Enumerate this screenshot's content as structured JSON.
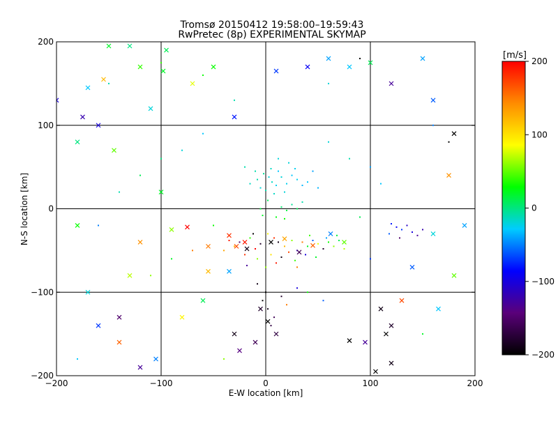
{
  "chart_data": {
    "type": "scatter",
    "title": "Tromsø 20150412 19:58:00–19:59:43",
    "subtitle": "RwPretec (8p) EXPERIMENTAL SKYMAP",
    "xlabel": "E-W location [km]",
    "ylabel": "N-S location [km]",
    "xlim": [
      -200,
      200
    ],
    "ylim": [
      -200,
      200
    ],
    "x_ticks": [
      -200,
      -100,
      0,
      100,
      200
    ],
    "y_ticks": [
      -200,
      -100,
      0,
      100,
      200
    ],
    "x_tick_labels": [
      "−200",
      "−100",
      "0",
      "100",
      "200"
    ],
    "y_tick_labels": [
      "−200",
      "−100",
      "0",
      "100",
      "200"
    ],
    "grid": true,
    "colorbar": {
      "label": "[m/s]",
      "min": -200,
      "max": 200,
      "ticks": [
        200,
        100,
        0,
        -100,
        -200
      ],
      "tick_labels": [
        "200",
        "100",
        "0",
        "−100",
        "−200"
      ],
      "colormap": [
        "#000000",
        "#5a007a",
        "#0000ff",
        "#00ccff",
        "#00ff00",
        "#ffff00",
        "#ff8c00",
        "#ff0000"
      ]
    },
    "series": [
      {
        "marker": "dot",
        "points": [
          [
            3,
            38,
            -20
          ],
          [
            6,
            32,
            -15
          ],
          [
            -2,
            42,
            -5
          ],
          [
            10,
            28,
            -25
          ],
          [
            12,
            45,
            -30
          ],
          [
            -8,
            35,
            -10
          ],
          [
            15,
            38,
            -20
          ],
          [
            20,
            30,
            -25
          ],
          [
            0,
            22,
            -10
          ],
          [
            5,
            48,
            -15
          ],
          [
            -5,
            25,
            -20
          ],
          [
            25,
            40,
            -30
          ],
          [
            8,
            18,
            -15
          ],
          [
            18,
            20,
            -20
          ],
          [
            -10,
            45,
            -10
          ],
          [
            30,
            35,
            -25
          ],
          [
            35,
            28,
            -35
          ],
          [
            40,
            32,
            -30
          ],
          [
            22,
            55,
            -20
          ],
          [
            -15,
            30,
            -15
          ],
          [
            45,
            45,
            -40
          ],
          [
            50,
            25,
            -35
          ],
          [
            -20,
            50,
            -10
          ],
          [
            12,
            60,
            -20
          ],
          [
            28,
            48,
            -25
          ],
          [
            2,
            10,
            10
          ],
          [
            -3,
            -8,
            20
          ],
          [
            15,
            2,
            5
          ],
          [
            20,
            -2,
            15
          ],
          [
            25,
            5,
            -5
          ],
          [
            10,
            -10,
            25
          ],
          [
            30,
            0,
            10
          ],
          [
            35,
            8,
            -10
          ],
          [
            18,
            -12,
            30
          ],
          [
            -5,
            0,
            15
          ],
          [
            8,
            -35,
            180
          ],
          [
            12,
            -40,
            -190
          ],
          [
            18,
            -45,
            120
          ],
          [
            25,
            -38,
            60
          ],
          [
            -5,
            -42,
            -180
          ],
          [
            -10,
            -48,
            200
          ],
          [
            -15,
            -35,
            40
          ],
          [
            30,
            -50,
            -120
          ],
          [
            35,
            -40,
            150
          ],
          [
            40,
            -45,
            20
          ],
          [
            45,
            -38,
            -60
          ],
          [
            50,
            -42,
            80
          ],
          [
            55,
            -48,
            -180
          ],
          [
            60,
            -40,
            30
          ],
          [
            65,
            -45,
            60
          ],
          [
            -20,
            -55,
            180
          ],
          [
            -25,
            -40,
            -150
          ],
          [
            -30,
            -45,
            120
          ],
          [
            5,
            -55,
            100
          ],
          [
            15,
            -58,
            -190
          ],
          [
            22,
            -52,
            170
          ],
          [
            -8,
            -60,
            60
          ],
          [
            28,
            -62,
            40
          ],
          [
            38,
            -55,
            -100
          ],
          [
            48,
            -58,
            20
          ],
          [
            70,
            -38,
            10
          ],
          [
            75,
            -48,
            70
          ],
          [
            -35,
            -38,
            190
          ],
          [
            -40,
            -50,
            130
          ],
          [
            2,
            -30,
            90
          ],
          [
            -12,
            -30,
            -200
          ],
          [
            42,
            -32,
            40
          ],
          [
            58,
            -35,
            -40
          ],
          [
            68,
            -32,
            15
          ],
          [
            10,
            -65,
            190
          ],
          [
            0,
            -70,
            60
          ],
          [
            -18,
            -68,
            -130
          ],
          [
            30,
            -70,
            150
          ],
          [
            120,
            -18,
            -80
          ],
          [
            125,
            -22,
            -90
          ],
          [
            130,
            -25,
            -70
          ],
          [
            135,
            -20,
            -110
          ],
          [
            140,
            -28,
            -100
          ],
          [
            118,
            -30,
            -60
          ],
          [
            145,
            -32,
            -130
          ],
          [
            150,
            -25,
            -120
          ],
          [
            128,
            -35,
            -150
          ],
          [
            0,
            -100,
            -200
          ],
          [
            2,
            -120,
            -190
          ],
          [
            5,
            -140,
            -170
          ],
          [
            -3,
            -110,
            -200
          ],
          [
            8,
            -130,
            -160
          ],
          [
            15,
            -105,
            -180
          ],
          [
            20,
            -115,
            150
          ],
          [
            -8,
            -90,
            -190
          ],
          [
            30,
            -95,
            -100
          ],
          [
            40,
            -100,
            30
          ],
          [
            55,
            -110,
            -60
          ],
          [
            -60,
            90,
            -30
          ],
          [
            -80,
            70,
            -20
          ],
          [
            -100,
            60,
            0
          ],
          [
            -120,
            40,
            10
          ],
          [
            -140,
            20,
            -10
          ],
          [
            -160,
            -20,
            -50
          ],
          [
            -50,
            -20,
            30
          ],
          [
            -70,
            -50,
            150
          ],
          [
            -90,
            -60,
            20
          ],
          [
            -110,
            -80,
            60
          ],
          [
            60,
            80,
            -20
          ],
          [
            80,
            60,
            -10
          ],
          [
            100,
            50,
            -40
          ],
          [
            110,
            30,
            -30
          ],
          [
            90,
            -10,
            10
          ],
          [
            100,
            -60,
            -70
          ],
          [
            -30,
            130,
            -10
          ],
          [
            -60,
            160,
            30
          ],
          [
            60,
            150,
            -20
          ],
          [
            90,
            180,
            -200
          ],
          [
            -150,
            150,
            -10
          ],
          [
            -100,
            175,
            40
          ],
          [
            160,
            100,
            -50
          ],
          [
            175,
            80,
            -200
          ],
          [
            -180,
            -180,
            -30
          ],
          [
            150,
            -150,
            20
          ],
          [
            -40,
            -180,
            60
          ]
        ]
      },
      {
        "marker": "cross",
        "points": [
          [
            -20,
            -40,
            190
          ],
          [
            -18,
            -48,
            -190
          ],
          [
            -28,
            -45,
            170
          ],
          [
            -35,
            -32,
            180
          ],
          [
            5,
            -40,
            -200
          ],
          [
            18,
            -36,
            130
          ],
          [
            32,
            -52,
            -160
          ],
          [
            45,
            -44,
            160
          ],
          [
            62,
            -30,
            -50
          ],
          [
            75,
            -40,
            50
          ],
          [
            -5,
            -120,
            -180
          ],
          [
            2,
            -135,
            -200
          ],
          [
            10,
            -150,
            -170
          ],
          [
            -10,
            -160,
            -160
          ],
          [
            -30,
            -150,
            -190
          ],
          [
            -25,
            -170,
            -140
          ],
          [
            80,
            -158,
            -200
          ],
          [
            -200,
            130,
            -100
          ],
          [
            -170,
            -100,
            -20
          ],
          [
            -140,
            -160,
            160
          ],
          [
            -120,
            -190,
            -130
          ],
          [
            -160,
            -140,
            -70
          ],
          [
            -180,
            -20,
            30
          ],
          [
            -60,
            -110,
            10
          ],
          [
            -80,
            -130,
            90
          ],
          [
            -105,
            -180,
            -50
          ],
          [
            -175,
            110,
            -120
          ],
          [
            -150,
            195,
            20
          ],
          [
            -120,
            170,
            40
          ],
          [
            -95,
            190,
            10
          ],
          [
            -130,
            195,
            0
          ],
          [
            -98,
            165,
            20
          ],
          [
            -170,
            145,
            -30
          ],
          [
            -155,
            155,
            120
          ],
          [
            -180,
            80,
            0
          ],
          [
            -145,
            70,
            50
          ],
          [
            -160,
            100,
            -100
          ],
          [
            -110,
            120,
            -20
          ],
          [
            -70,
            150,
            80
          ],
          [
            -50,
            170,
            30
          ],
          [
            -30,
            110,
            -80
          ],
          [
            10,
            165,
            -70
          ],
          [
            40,
            170,
            -90
          ],
          [
            60,
            180,
            -40
          ],
          [
            80,
            170,
            -30
          ],
          [
            100,
            175,
            10
          ],
          [
            120,
            150,
            -130
          ],
          [
            150,
            180,
            -40
          ],
          [
            160,
            130,
            -60
          ],
          [
            180,
            90,
            -200
          ],
          [
            175,
            40,
            140
          ],
          [
            190,
            -20,
            -40
          ],
          [
            180,
            -80,
            50
          ],
          [
            165,
            -120,
            -30
          ],
          [
            160,
            -30,
            -20
          ],
          [
            140,
            -70,
            -60
          ],
          [
            130,
            -110,
            170
          ],
          [
            110,
            -120,
            -190
          ],
          [
            120,
            -140,
            -180
          ],
          [
            115,
            -150,
            -200
          ],
          [
            95,
            -160,
            -130
          ],
          [
            105,
            -195,
            -200
          ],
          [
            120,
            -185,
            -190
          ],
          [
            -55,
            -75,
            120
          ],
          [
            -35,
            -75,
            -40
          ],
          [
            -55,
            -45,
            150
          ],
          [
            -75,
            -22,
            200
          ],
          [
            -100,
            20,
            20
          ],
          [
            -120,
            -40,
            140
          ],
          [
            -130,
            -80,
            70
          ],
          [
            -140,
            -130,
            -150
          ],
          [
            -90,
            -25,
            60
          ]
        ]
      }
    ]
  }
}
